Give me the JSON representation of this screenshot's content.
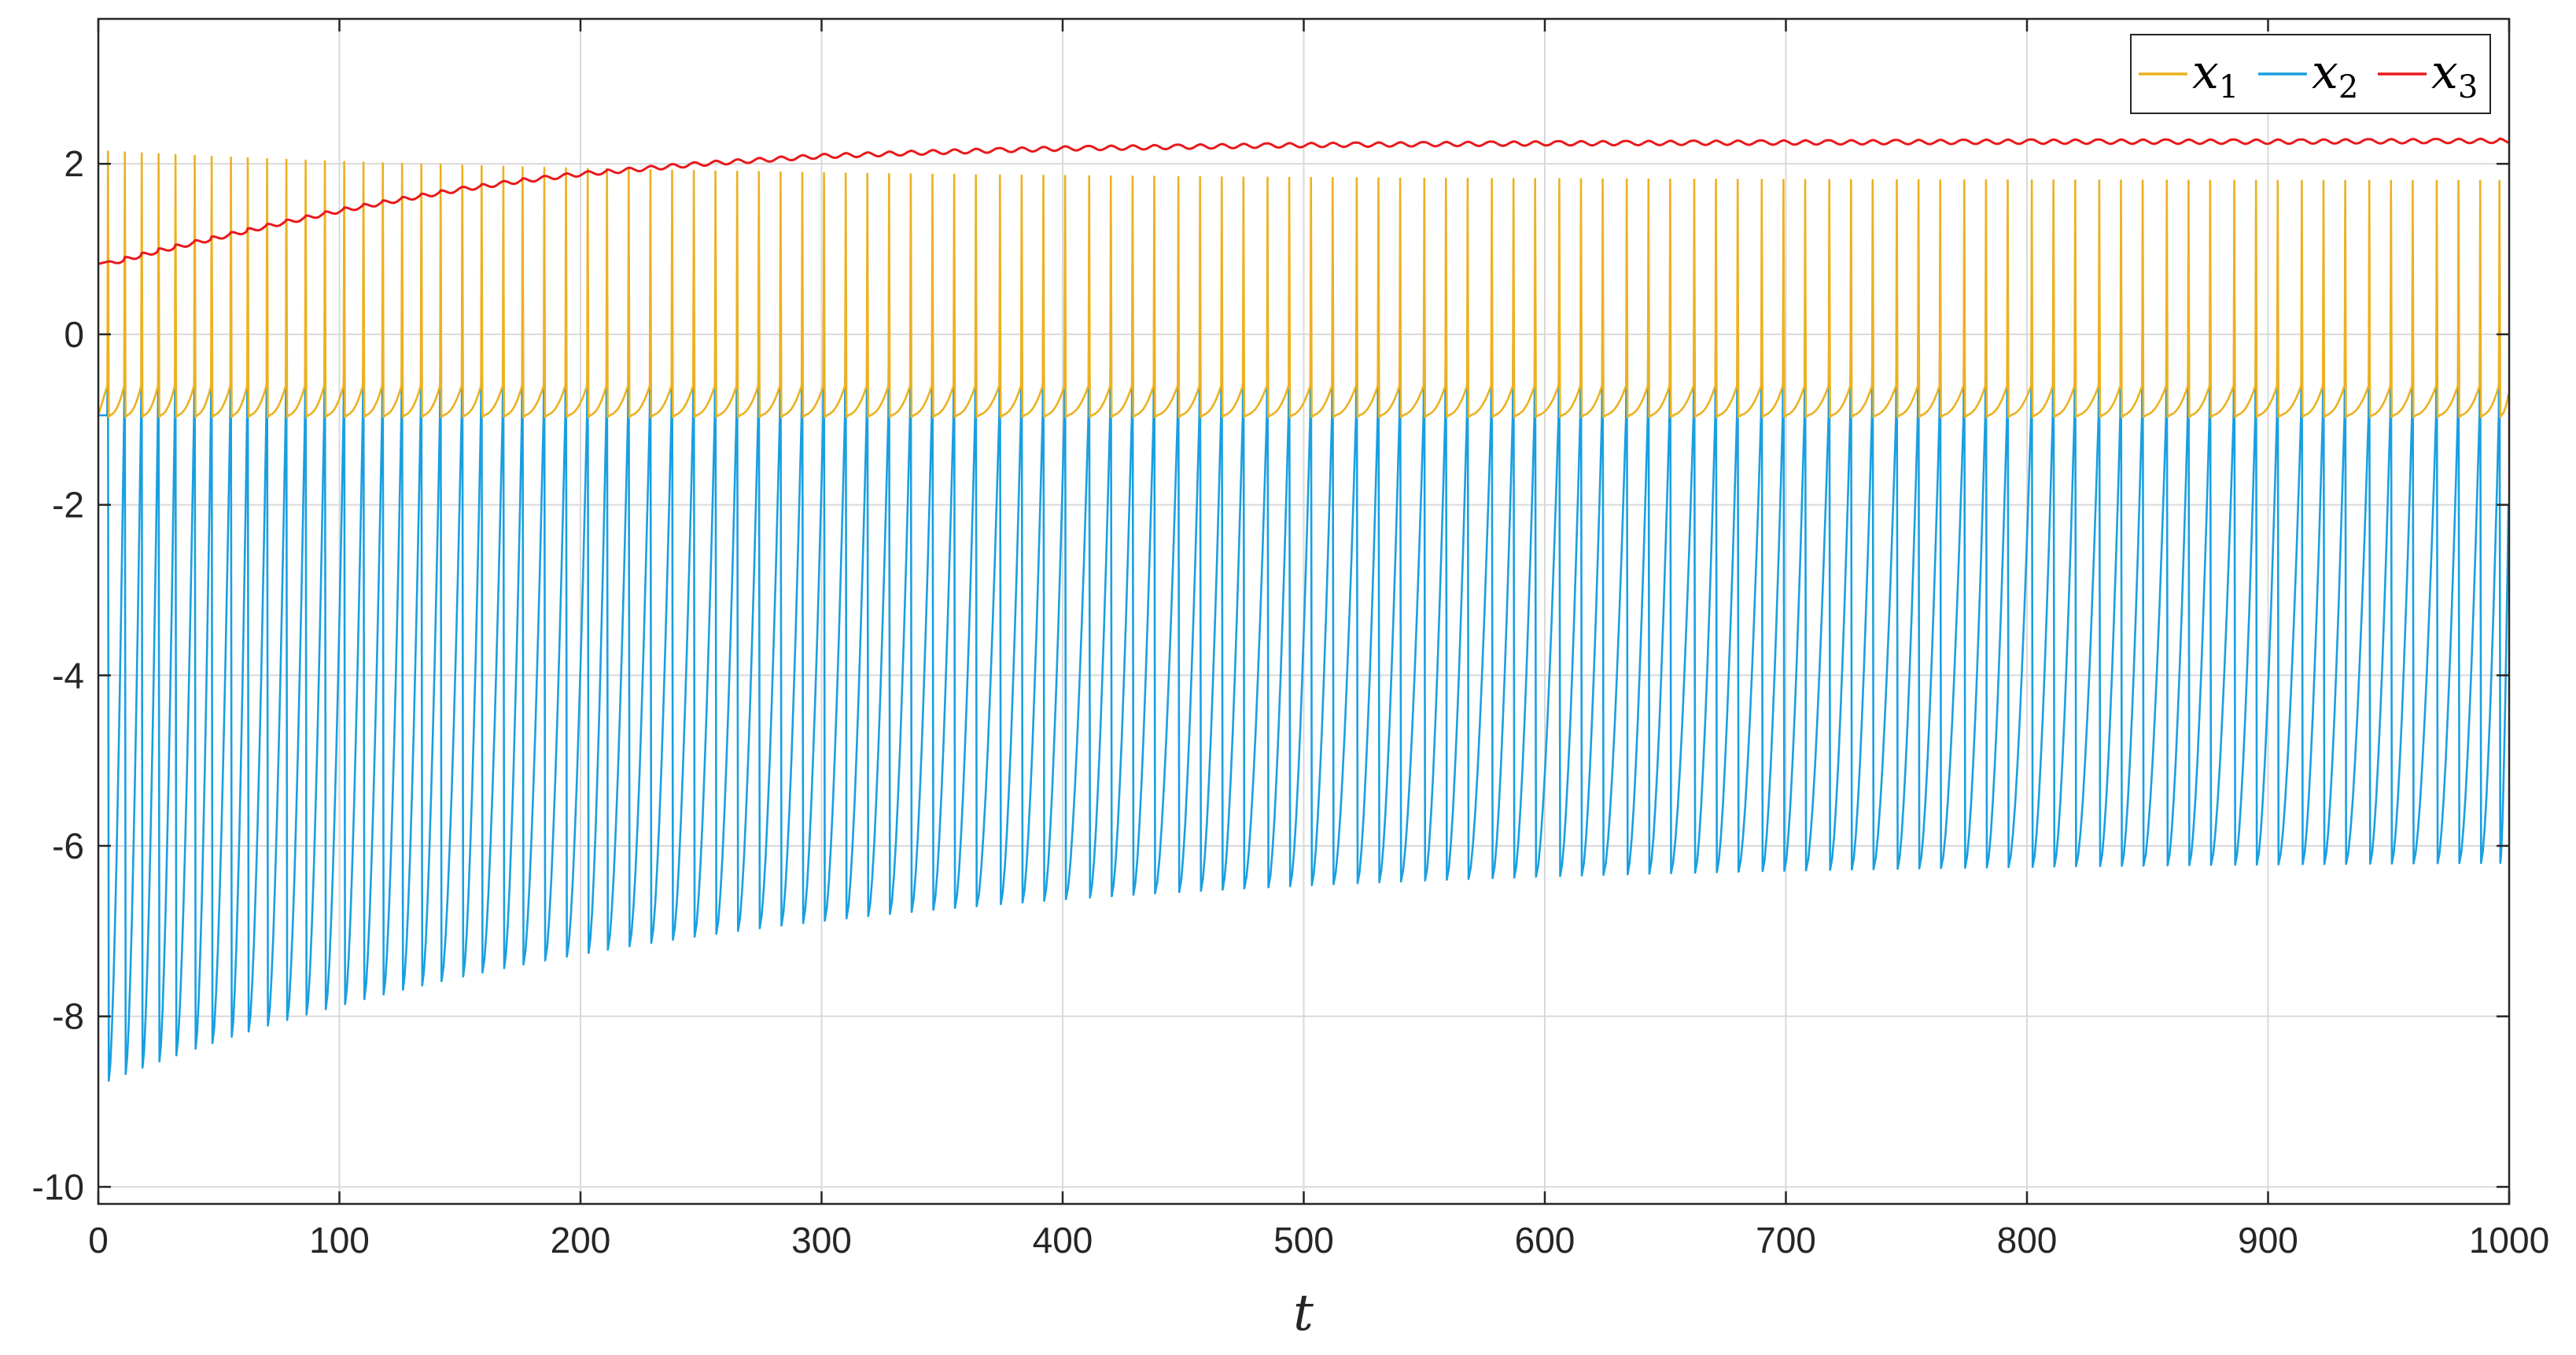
{
  "chart_data": {
    "type": "line",
    "title": "",
    "xlabel": "t",
    "ylabel": "",
    "xlim": [
      0,
      1000
    ],
    "ylim": [
      -10.2,
      3.7
    ],
    "x_ticks": [
      0,
      100,
      200,
      300,
      400,
      500,
      600,
      700,
      800,
      900,
      1000
    ],
    "x_tick_labels": [
      "0",
      "100",
      "200",
      "300",
      "400",
      "500",
      "600",
      "700",
      "800",
      "900",
      "1000"
    ],
    "y_ticks": [
      -10,
      -8,
      -6,
      -4,
      -2,
      0,
      2
    ],
    "y_tick_labels": [
      "-10",
      "-8",
      "-6",
      "-4",
      "-2",
      "0",
      "2"
    ],
    "grid": true,
    "legend_position": "top-right",
    "legend": [
      {
        "base": "x",
        "sub": "1",
        "color": "#EDB120"
      },
      {
        "base": "x",
        "sub": "2",
        "color": "#1A9FE0"
      },
      {
        "base": "x",
        "sub": "3",
        "color": "#E8191C"
      }
    ],
    "series": [
      {
        "name": "x1",
        "color": "#EDB120",
        "kind": "spiking",
        "spike_times": [
          4,
          11,
          18,
          25,
          32,
          40,
          47,
          55,
          62,
          70,
          78,
          86,
          94,
          102,
          110,
          118,
          126,
          134,
          142,
          151,
          159,
          168,
          176,
          185,
          194,
          203,
          211,
          220,
          229,
          238,
          247,
          256,
          265,
          274,
          283,
          292,
          301,
          310,
          319,
          328,
          337,
          346,
          355,
          364,
          374,
          383,
          392,
          401,
          411,
          420,
          429,
          438,
          448,
          457,
          466,
          475,
          485,
          494,
          503,
          512,
          522,
          531,
          540,
          550,
          559,
          568,
          578,
          587,
          596,
          606,
          615,
          624,
          634,
          643,
          652,
          662,
          671,
          680,
          690,
          699,
          708,
          718,
          727,
          736,
          746,
          755,
          764,
          774,
          783,
          792,
          802,
          811,
          820,
          830,
          839,
          848,
          858,
          867,
          876,
          886,
          895,
          904,
          914,
          923,
          932,
          942,
          951,
          960,
          970,
          979,
          988,
          996
        ],
        "peak_start": 2.15,
        "peak_end": 1.8,
        "trough": -0.95,
        "end_value": -0.7
      },
      {
        "name": "x2",
        "color": "#1A9FE0",
        "kind": "spiking",
        "spike_times": [
          4,
          11,
          18,
          25,
          32,
          40,
          47,
          55,
          62,
          70,
          78,
          86,
          94,
          102,
          110,
          118,
          126,
          134,
          142,
          151,
          159,
          168,
          176,
          185,
          194,
          203,
          211,
          220,
          229,
          238,
          247,
          256,
          265,
          274,
          283,
          292,
          301,
          310,
          319,
          328,
          337,
          346,
          355,
          364,
          374,
          383,
          392,
          401,
          411,
          420,
          429,
          438,
          448,
          457,
          466,
          475,
          485,
          494,
          503,
          512,
          522,
          531,
          540,
          550,
          559,
          568,
          578,
          587,
          596,
          606,
          615,
          624,
          634,
          643,
          652,
          662,
          671,
          680,
          690,
          699,
          708,
          718,
          727,
          736,
          746,
          755,
          764,
          774,
          783,
          792,
          802,
          811,
          820,
          830,
          839,
          848,
          858,
          867,
          876,
          886,
          895,
          904,
          914,
          923,
          932,
          942,
          951,
          960,
          970,
          979,
          988,
          996
        ],
        "high_start": -0.3,
        "high_end": 0.5,
        "plateau": -0.95,
        "low_start": -8.8,
        "low_end": -6.2,
        "end_value": -2.0
      },
      {
        "name": "x3",
        "color": "#E8191C",
        "kind": "envelope",
        "t": [
          0,
          25,
          50,
          75,
          100,
          125,
          150,
          175,
          200,
          250,
          300,
          350,
          400,
          450,
          500,
          600,
          700,
          800,
          900,
          1000
        ],
        "values": [
          0.8,
          0.98,
          1.14,
          1.3,
          1.45,
          1.58,
          1.7,
          1.8,
          1.88,
          2.0,
          2.09,
          2.14,
          2.18,
          2.2,
          2.22,
          2.24,
          2.25,
          2.26,
          2.26,
          2.27
        ],
        "ripple": 0.025
      }
    ]
  }
}
